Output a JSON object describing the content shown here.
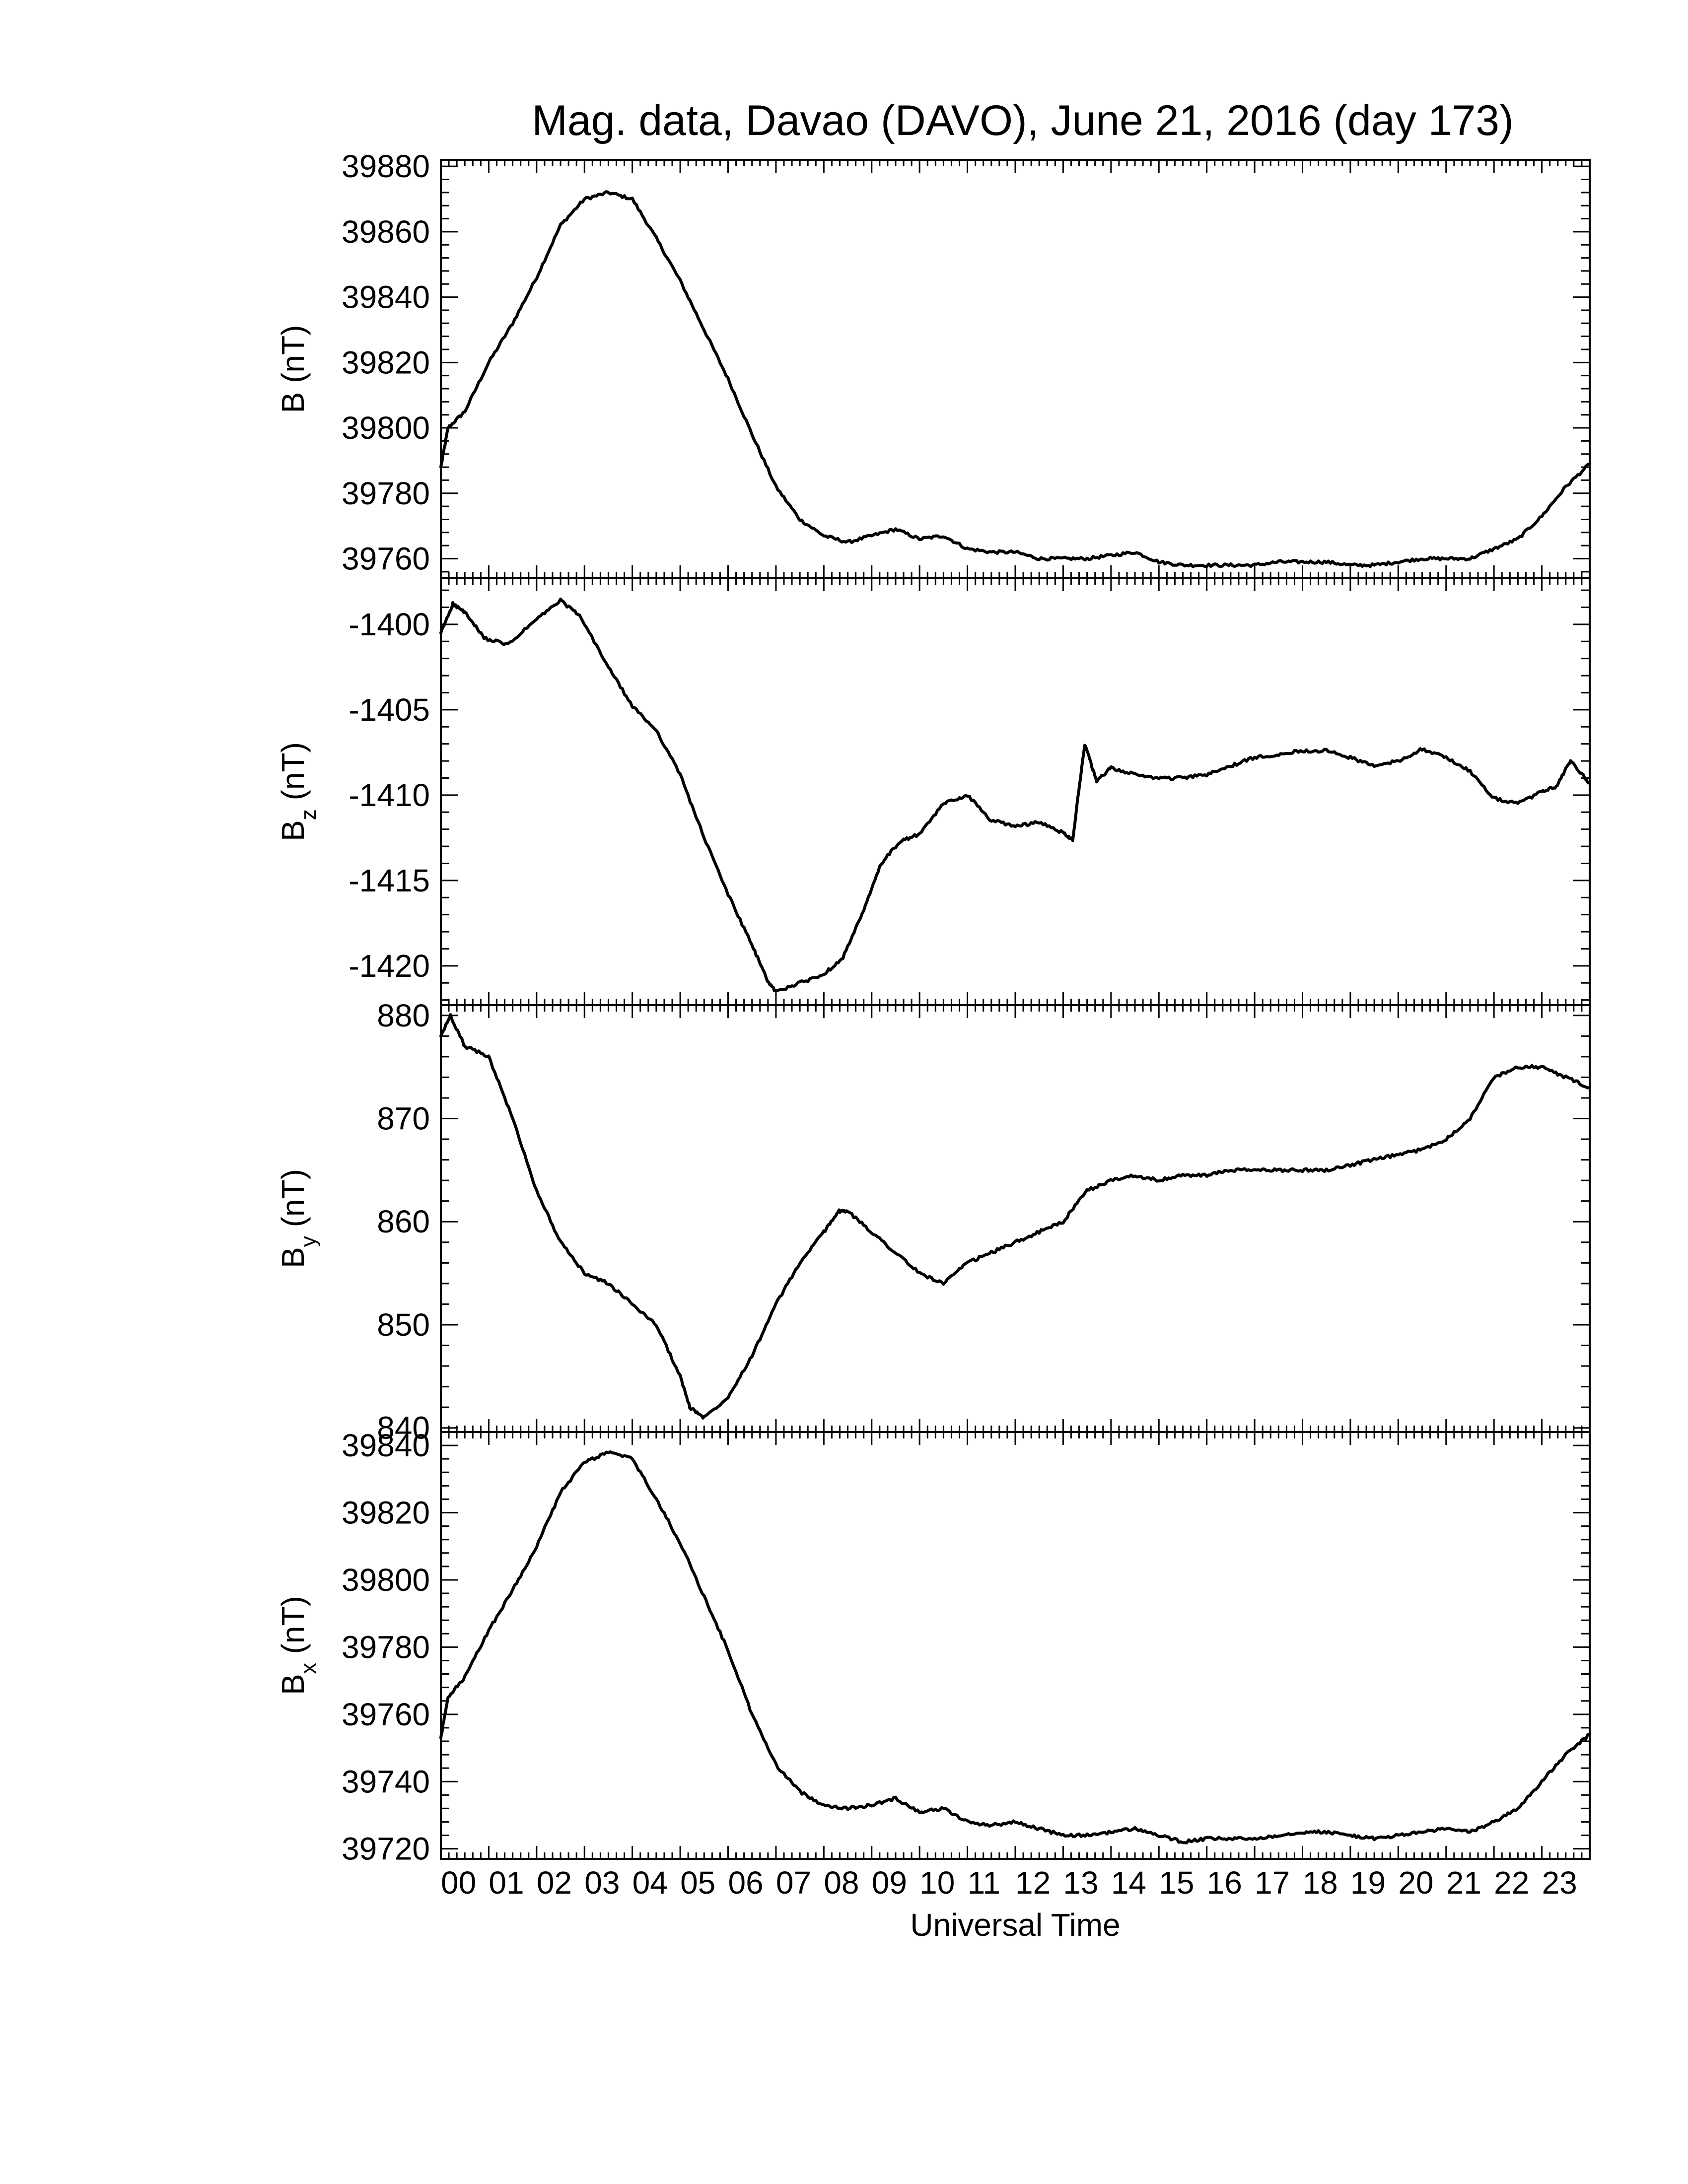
{
  "chart_data": {
    "type": "line",
    "title": "Mag. data, Davao (DAVO), June 21, 2016 (day 173)",
    "xlabel": "Universal Time",
    "x_tick_labels": [
      "00",
      "01",
      "02",
      "03",
      "04",
      "05",
      "06",
      "07",
      "08",
      "09",
      "10",
      "11",
      "12",
      "13",
      "14",
      "15",
      "16",
      "17",
      "18",
      "19",
      "20",
      "21",
      "22",
      "23"
    ],
    "xlim": [
      0,
      24
    ],
    "panels": [
      {
        "ylabel_main": "B",
        "ylabel_sub": "",
        "ylabel_unit": "(nT)",
        "ylim": [
          39754,
          39882
        ],
        "yticks": [
          39760,
          39780,
          39800,
          39820,
          39840,
          39860,
          39880
        ],
        "ytick_labels": [
          "39760",
          "39780",
          "39800",
          "39820",
          "39840",
          "39860",
          "39880"
        ],
        "x": [
          0,
          0.15,
          0.5,
          1.0,
          1.5,
          2.0,
          2.5,
          3.0,
          3.5,
          4.0,
          4.5,
          5.0,
          5.5,
          6.0,
          6.5,
          7.0,
          7.5,
          8.0,
          8.5,
          9.0,
          9.5,
          10.0,
          10.5,
          11.0,
          11.5,
          12.0,
          12.5,
          13.0,
          13.5,
          14.0,
          14.5,
          15.0,
          15.5,
          16.0,
          16.5,
          17.0,
          17.5,
          18.0,
          18.5,
          19.0,
          19.5,
          20.0,
          20.5,
          21.0,
          21.5,
          22.0,
          22.5,
          23.0,
          23.5,
          24.0
        ],
        "values": [
          39788,
          39800,
          39805,
          39820,
          39832,
          39846,
          39862,
          39870,
          39872,
          39870,
          39858,
          39845,
          39830,
          39815,
          39798,
          39782,
          39772,
          39767,
          39765,
          39767,
          39769,
          39766,
          39767,
          39763,
          39762,
          39762,
          39760,
          39760,
          39760,
          39761,
          39762,
          39759,
          39758,
          39758,
          39758,
          39758,
          39759,
          39759,
          39759,
          39758,
          39758,
          39759,
          39760,
          39760,
          39760,
          39763,
          39766,
          39773,
          39782,
          39789
        ]
      },
      {
        "ylabel_main": "B",
        "ylabel_sub": "z",
        "ylabel_unit": "(nT)",
        "ylim": [
          -1422.3,
          -1397.3
        ],
        "yticks": [
          -1420,
          -1415,
          -1410,
          -1405,
          -1400
        ],
        "ytick_labels": [
          "-1420",
          "-1415",
          "-1410",
          "-1405",
          "-1400"
        ],
        "x": [
          0,
          0.25,
          0.5,
          0.9,
          1.4,
          2.0,
          2.5,
          2.9,
          3.5,
          4.0,
          4.5,
          5.0,
          5.5,
          6.0,
          6.5,
          6.85,
          7.0,
          7.5,
          8.0,
          8.4,
          8.8,
          9.2,
          9.6,
          10.0,
          10.5,
          11.0,
          11.5,
          12.0,
          12.5,
          13.0,
          13.2,
          13.45,
          13.7,
          14.0,
          14.5,
          15.0,
          15.5,
          16.0,
          16.5,
          17.0,
          17.5,
          18.0,
          18.5,
          19.0,
          19.5,
          20.0,
          20.5,
          21.0,
          21.5,
          22.0,
          22.5,
          23.0,
          23.3,
          23.6,
          24.0
        ],
        "values": [
          -1400.5,
          -1398.8,
          -1399.3,
          -1400.8,
          -1401.2,
          -1399.7,
          -1398.6,
          -1399.5,
          -1402.5,
          -1404.8,
          -1406.2,
          -1408.8,
          -1412.5,
          -1415.8,
          -1418.8,
          -1421.0,
          -1421.5,
          -1421.0,
          -1420.5,
          -1419.5,
          -1417.0,
          -1414.0,
          -1412.7,
          -1412.3,
          -1410.5,
          -1410.0,
          -1411.5,
          -1411.8,
          -1411.6,
          -1412.2,
          -1412.6,
          -1407.0,
          -1409.2,
          -1408.4,
          -1408.8,
          -1409.0,
          -1409.0,
          -1408.8,
          -1408.3,
          -1407.8,
          -1407.6,
          -1407.4,
          -1407.4,
          -1407.8,
          -1408.3,
          -1408.0,
          -1407.3,
          -1407.8,
          -1408.6,
          -1410.2,
          -1410.5,
          -1409.8,
          -1409.5,
          -1408.0,
          -1409.3
        ]
      },
      {
        "ylabel_main": "B",
        "ylabel_sub": "y",
        "ylabel_unit": "(nT)",
        "ylim": [
          839.6,
          881.0
        ],
        "yticks": [
          840,
          850,
          860,
          870,
          880
        ],
        "ytick_labels": [
          "840",
          "850",
          "860",
          "870",
          "880"
        ],
        "x": [
          0,
          0.2,
          0.5,
          1.0,
          1.5,
          2.0,
          2.5,
          3.0,
          3.5,
          4.0,
          4.5,
          5.0,
          5.2,
          5.5,
          6.0,
          6.5,
          7.0,
          7.5,
          8.0,
          8.3,
          8.5,
          9.0,
          9.5,
          10.0,
          10.5,
          11.0,
          11.5,
          12.0,
          12.5,
          13.0,
          13.5,
          14.0,
          14.5,
          15.0,
          15.5,
          16.0,
          16.5,
          17.0,
          17.5,
          18.0,
          18.5,
          19.0,
          19.5,
          20.0,
          20.5,
          21.0,
          21.5,
          22.0,
          22.5,
          23.0,
          23.5,
          24.0
        ],
        "values": [
          878,
          880,
          877,
          876,
          870,
          863,
          858,
          855,
          854,
          852,
          850,
          845,
          842,
          841,
          843,
          847,
          852,
          856,
          859,
          861,
          861,
          859,
          857,
          855,
          854,
          856,
          857,
          858,
          859,
          860,
          863,
          864,
          864.5,
          864,
          864.5,
          864.5,
          865,
          865,
          865,
          865,
          865,
          865.5,
          866,
          866.5,
          867,
          868,
          870,
          874,
          875,
          875,
          874,
          873
        ]
      },
      {
        "ylabel_main": "B",
        "ylabel_sub": "x",
        "ylabel_unit": "(nT)",
        "ylim": [
          39717,
          39844
        ],
        "yticks": [
          39720,
          39740,
          39760,
          39780,
          39800,
          39820,
          39840
        ],
        "ytick_labels": [
          "39720",
          "39740",
          "39760",
          "39780",
          "39800",
          "39820",
          "39840"
        ],
        "x": [
          0,
          0.15,
          0.5,
          1.0,
          1.5,
          2.0,
          2.5,
          3.0,
          3.5,
          4.0,
          4.5,
          5.0,
          5.5,
          6.0,
          6.5,
          7.0,
          7.5,
          8.0,
          8.5,
          9.0,
          9.5,
          10.0,
          10.5,
          11.0,
          11.5,
          12.0,
          12.5,
          13.0,
          13.5,
          14.0,
          14.5,
          15.0,
          15.5,
          16.0,
          16.5,
          17.0,
          17.5,
          18.0,
          18.5,
          19.0,
          19.5,
          20.0,
          20.5,
          21.0,
          21.5,
          22.0,
          22.5,
          23.0,
          23.5,
          24.0
        ],
        "values": [
          39753,
          39765,
          39771,
          39785,
          39797,
          39810,
          39826,
          39835,
          39838,
          39836,
          39824,
          39811,
          39795,
          39779,
          39760,
          39745,
          39737,
          39733,
          39732,
          39733,
          39735,
          39731,
          39732,
          39728,
          39727,
          39728,
          39726,
          39724,
          39724,
          39725,
          39726,
          39724,
          39722,
          39723,
          39723,
          39723,
          39724,
          39725,
          39725,
          39724,
          39723,
          39724,
          39725,
          39726,
          39725,
          39728,
          39732,
          39740,
          39748,
          39754
        ]
      }
    ]
  }
}
